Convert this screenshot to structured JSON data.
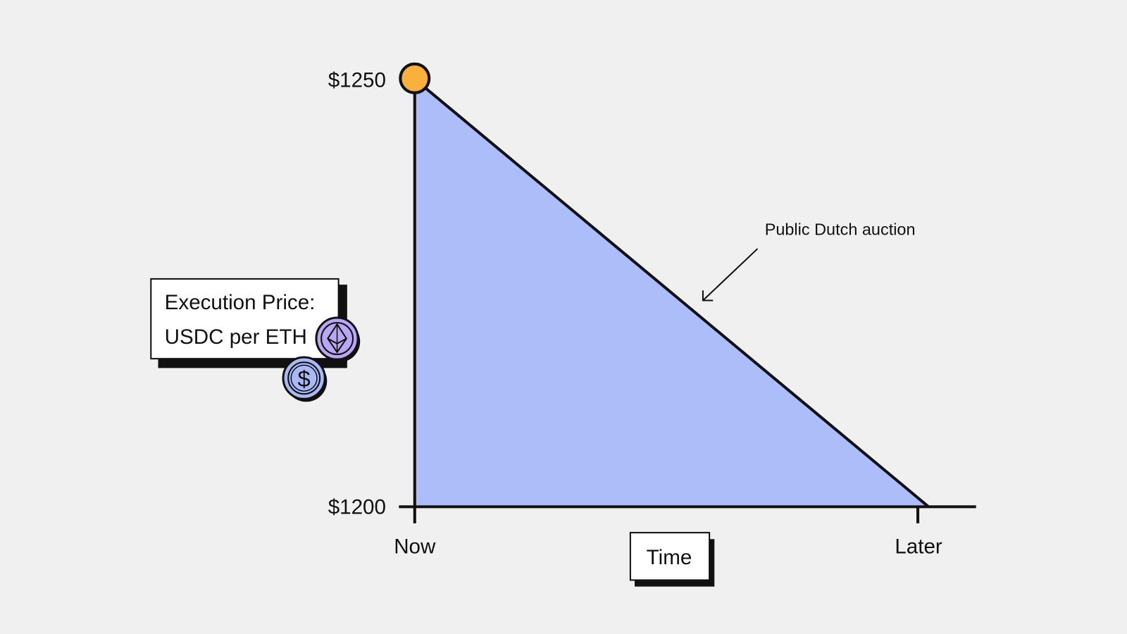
{
  "chart_data": {
    "type": "area",
    "title": "",
    "xlabel": "Time",
    "ylabel": "Execution Price: USDC per ETH",
    "ylabel_lines": [
      "Execution Price:",
      "USDC per ETH"
    ],
    "x_ticks": [
      "Now",
      "Later"
    ],
    "y_ticks": [
      "$1250",
      "$1200"
    ],
    "ylim": [
      1200,
      1250
    ],
    "series": [
      {
        "points": [
          {
            "x": "Now",
            "y": 1250
          },
          {
            "x": "Later",
            "y": 1200
          }
        ]
      }
    ],
    "annotation": "Public Dutch auction",
    "start_marker": {
      "x": "Now",
      "y": 1250
    },
    "grid": false,
    "icons": [
      "eth-coin-icon",
      "dollar-coin-icon"
    ]
  },
  "colors": {
    "background": "#f0f0f0",
    "area_fill": "#adbdfa",
    "start_marker": "#fbb03b",
    "eth_coin": "#b9a6f7",
    "dollar_coin": "#a9b9f8",
    "line": "#111111"
  }
}
